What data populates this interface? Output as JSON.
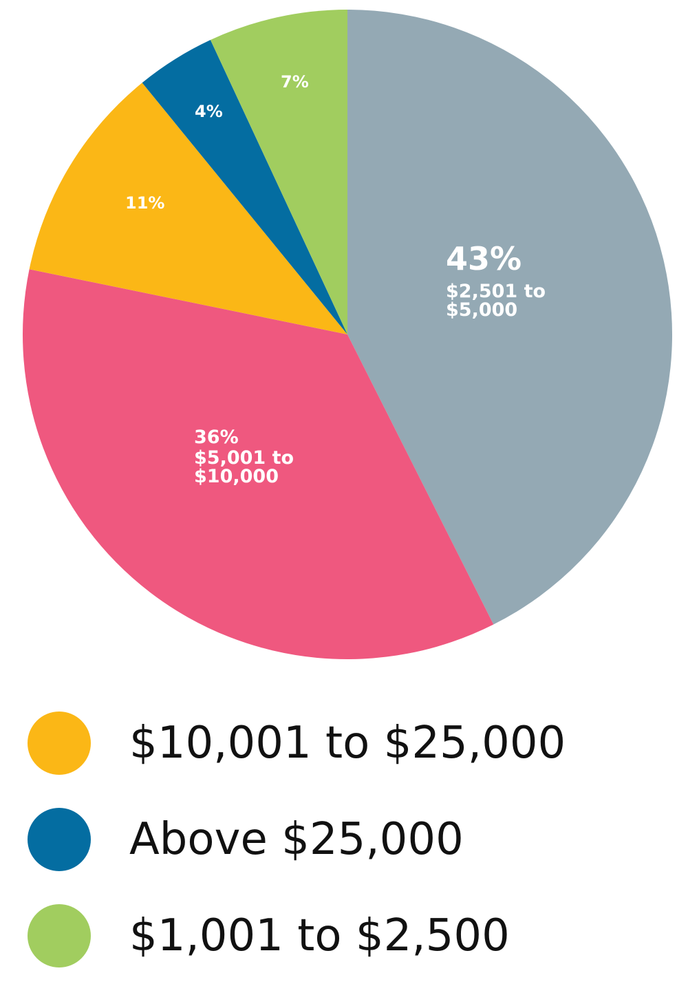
{
  "chart_data": {
    "type": "pie",
    "slices": [
      {
        "value": 43,
        "percent_label": "43%",
        "label": "$2,501 to $5,000",
        "label_lines": [
          "$2,501 to",
          "$5,000"
        ],
        "color": "#94a9b4"
      },
      {
        "value": 36,
        "percent_label": "36%",
        "label": "$5,001 to $10,000",
        "label_lines": [
          "$5,001 to",
          "$10,000"
        ],
        "color": "#ef587f"
      },
      {
        "value": 11,
        "percent_label": "11%",
        "label": "$10,001 to $25,000",
        "label_lines": [],
        "color": "#fbb716"
      },
      {
        "value": 4,
        "percent_label": "4%",
        "label": "Above $25,000",
        "label_lines": [],
        "color": "#046da1"
      },
      {
        "value": 7,
        "percent_label": "7%",
        "label": "$1,001 to $2,500",
        "label_lines": [],
        "color": "#a1cd5f"
      }
    ],
    "start_direction": "top",
    "direction": "clockwise",
    "legend": {
      "placement": "bottom",
      "entries": [
        {
          "label": "$10,001 to $25,000",
          "color": "#fbb716"
        },
        {
          "label": "Above $25,000",
          "color": "#046da1"
        },
        {
          "label": "$1,001 to $2,500",
          "color": "#a1cd5f"
        }
      ]
    }
  }
}
